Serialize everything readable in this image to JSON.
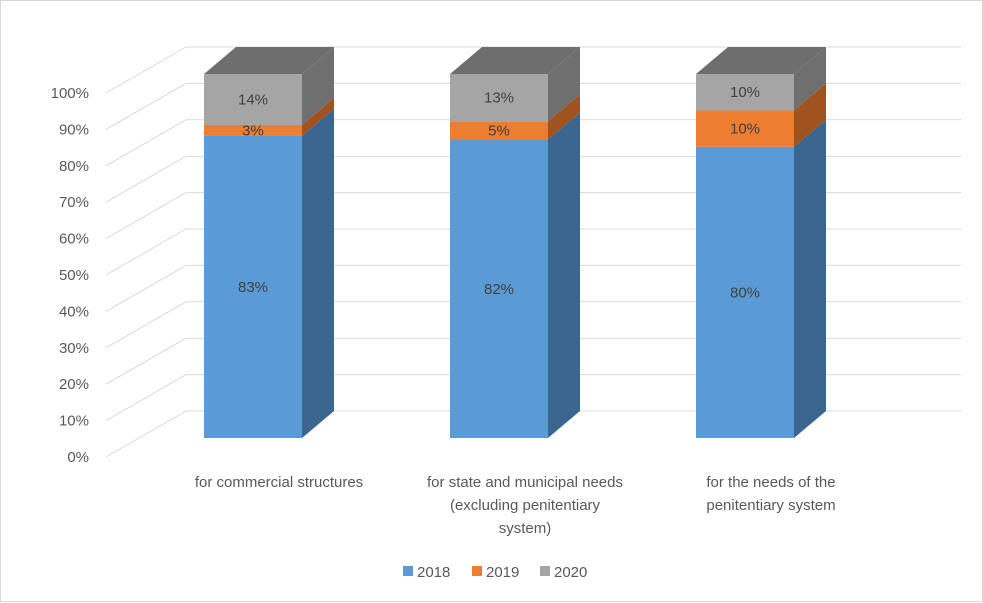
{
  "chart_data": {
    "type": "bar",
    "subtype": "stacked-100-3d",
    "categories": [
      [
        "for commercial structures"
      ],
      [
        "for state and municipal needs",
        "(excluding penitentiary",
        "system)"
      ],
      [
        "for the needs of the",
        "penitentiary system"
      ]
    ],
    "series": [
      {
        "name": "2018",
        "color": "#5b9bd5",
        "side_color": "#3a6690",
        "values": [
          83,
          82,
          80
        ],
        "labels": [
          "83%",
          "82%",
          "80%"
        ]
      },
      {
        "name": "2019",
        "color": "#ed7d31",
        "side_color": "#a0521f",
        "values": [
          3,
          5,
          10
        ],
        "labels": [
          "3%",
          "5%",
          "10%"
        ]
      },
      {
        "name": "2020",
        "color": "#a5a5a5",
        "side_color": "#6f6f6f",
        "values": [
          14,
          13,
          10
        ],
        "labels": [
          "14%",
          "13%",
          "10%"
        ]
      }
    ],
    "y_ticks": [
      "0%",
      "10%",
      "20%",
      "30%",
      "40%",
      "50%",
      "60%",
      "70%",
      "80%",
      "90%",
      "100%"
    ],
    "ylim": [
      0,
      100
    ],
    "grid": true,
    "legend_position": "bottom"
  }
}
